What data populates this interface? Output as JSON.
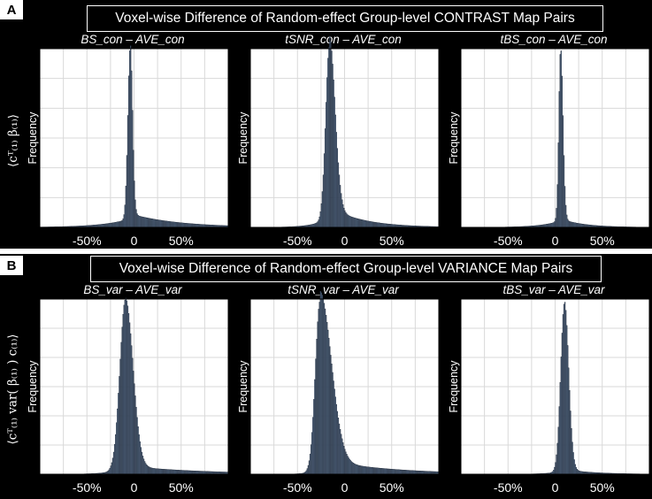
{
  "panels": [
    {
      "tag": "A",
      "title": "Voxel-wise Difference of Random-effect Group-level CONTRAST Map Pairs",
      "row_label": "⟨cᵀ₍₁₎ β₍₁₎⟩"
    },
    {
      "tag": "B",
      "title": "Voxel-wise Difference of Random-effect Group-level VARIANCE Map Pairs",
      "row_label": "⟨cᵀ₍₁₎ var( β₍₁₎ ) c₍₁₎⟩"
    }
  ],
  "chart_data": [
    {
      "type": "bar",
      "title": "BS_con – AVE_con",
      "ylabel": "Frequency",
      "xlim": [
        -100,
        100
      ],
      "xticks": [
        "-50%",
        "0",
        "50%"
      ],
      "grid": true,
      "distribution": {
        "peak_x": -4,
        "sigma_left": 2.5,
        "sigma_right": 2.5,
        "tail_left": 0.05,
        "tail_left_scale": 30,
        "tail_right": 0.08,
        "tail_right_scale": 50
      }
    },
    {
      "type": "bar",
      "title": "tSNR_con – AVE_con",
      "ylabel": "Frequency",
      "xlim": [
        -100,
        100
      ],
      "xticks": [
        "-50%",
        "0",
        "50%"
      ],
      "grid": true,
      "distribution": {
        "peak_x": -16,
        "sigma_left": 4,
        "sigma_right": 6,
        "tail_left": 0.06,
        "tail_left_scale": 15,
        "tail_right": 0.12,
        "tail_right_scale": 35
      }
    },
    {
      "type": "bar",
      "title": "tBS_con – AVE_con",
      "ylabel": "Frequency",
      "xlim": [
        -100,
        100
      ],
      "xticks": [
        "-50%",
        "0",
        "50%"
      ],
      "grid": true,
      "distribution": {
        "peak_x": 6,
        "sigma_left": 2,
        "sigma_right": 2.5,
        "tail_left": 0.04,
        "tail_left_scale": 20,
        "tail_right": 0.05,
        "tail_right_scale": 25
      }
    },
    {
      "type": "bar",
      "title": "BS_var – AVE_var",
      "ylabel": "Frequency",
      "xlim": [
        -100,
        100
      ],
      "xticks": [
        "-50%",
        "0",
        "50%"
      ],
      "grid": true,
      "distribution": {
        "peak_x": -9,
        "sigma_left": 6,
        "sigma_right": 8,
        "tail_left": 0.04,
        "tail_left_scale": 15,
        "tail_right": 0.05,
        "tail_right_scale": 80
      }
    },
    {
      "type": "bar",
      "title": "tSNR_var – AVE_var",
      "ylabel": "Frequency",
      "xlim": [
        -100,
        100
      ],
      "xticks": [
        "-50%",
        "0",
        "50%"
      ],
      "grid": true,
      "distribution": {
        "peak_x": -26,
        "sigma_left": 5,
        "sigma_right": 12,
        "tail_left": 0.03,
        "tail_left_scale": 10,
        "tail_right": 0.09,
        "tail_right_scale": 70
      }
    },
    {
      "type": "bar",
      "title": "tBS_var – AVE_var",
      "ylabel": "Frequency",
      "xlim": [
        -100,
        100
      ],
      "xticks": [
        "-50%",
        "0",
        "50%"
      ],
      "grid": true,
      "distribution": {
        "peak_x": 10,
        "sigma_left": 4,
        "sigma_right": 4.5,
        "tail_left": 0.02,
        "tail_left_scale": 15,
        "tail_right": 0.03,
        "tail_right_scale": 30
      }
    }
  ]
}
